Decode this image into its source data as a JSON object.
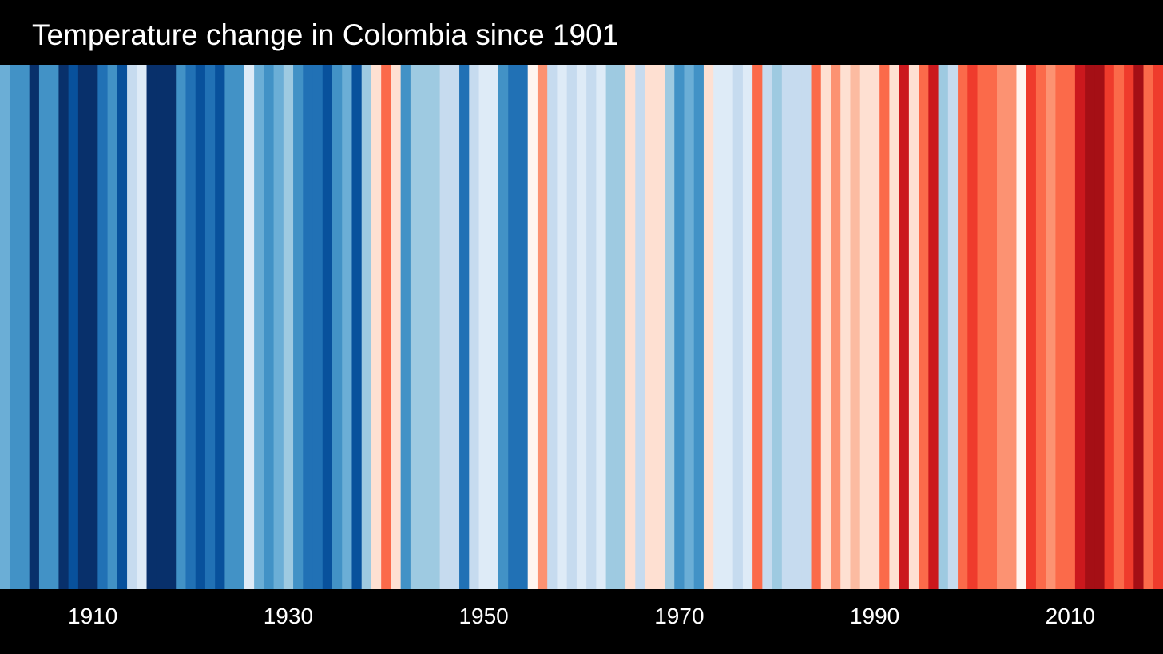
{
  "title": "Temperature change in Colombia since 1901",
  "colors": {
    "background": "#000000",
    "text": "#ffffff"
  },
  "chart_data": {
    "type": "heatmap",
    "title": "Temperature change in Colombia since 1901",
    "xlabel": "",
    "ylabel": "",
    "x_range": [
      1901,
      2019
    ],
    "x_ticks": [
      1910,
      1930,
      1950,
      1970,
      1990,
      2010
    ],
    "years": [
      1901,
      1902,
      1903,
      1904,
      1905,
      1906,
      1907,
      1908,
      1909,
      1910,
      1911,
      1912,
      1913,
      1914,
      1915,
      1916,
      1917,
      1918,
      1919,
      1920,
      1921,
      1922,
      1923,
      1924,
      1925,
      1926,
      1927,
      1928,
      1929,
      1930,
      1931,
      1932,
      1933,
      1934,
      1935,
      1936,
      1937,
      1938,
      1939,
      1940,
      1941,
      1942,
      1943,
      1944,
      1945,
      1946,
      1947,
      1948,
      1949,
      1950,
      1951,
      1952,
      1953,
      1954,
      1955,
      1956,
      1957,
      1958,
      1959,
      1960,
      1961,
      1962,
      1963,
      1964,
      1965,
      1966,
      1967,
      1968,
      1969,
      1970,
      1971,
      1972,
      1973,
      1974,
      1975,
      1976,
      1977,
      1978,
      1979,
      1980,
      1981,
      1982,
      1983,
      1984,
      1985,
      1986,
      1987,
      1988,
      1989,
      1990,
      1991,
      1992,
      1993,
      1994,
      1995,
      1996,
      1997,
      1998,
      1999,
      2000,
      2001,
      2002,
      2003,
      2004,
      2005,
      2006,
      2007,
      2008,
      2009,
      2010,
      2011,
      2012,
      2013,
      2014,
      2015,
      2016,
      2017,
      2018,
      2019
    ],
    "colors": [
      "#6baed6",
      "#4292c6",
      "#4292c6",
      "#08306b",
      "#4292c6",
      "#4292c6",
      "#08306b",
      "#08519c",
      "#08306b",
      "#08306b",
      "#2171b5",
      "#4292c6",
      "#08519c",
      "#c6dbef",
      "#deebf7",
      "#08306b",
      "#08306b",
      "#08306b",
      "#4292c6",
      "#2171b5",
      "#08519c",
      "#2171b5",
      "#08519c",
      "#4292c6",
      "#4292c6",
      "#deebf7",
      "#6baed6",
      "#4292c6",
      "#6baed6",
      "#9ecae1",
      "#4292c6",
      "#2171b5",
      "#2171b5",
      "#08519c",
      "#4292c6",
      "#6baed6",
      "#08519c",
      "#9ecae1",
      "#fee0d2",
      "#fb6a4a",
      "#fee0d2",
      "#4292c6",
      "#9ecae1",
      "#9ecae1",
      "#9ecae1",
      "#c6dbef",
      "#c6dbef",
      "#2171b5",
      "#c6dbef",
      "#deebf7",
      "#deebf7",
      "#4292c6",
      "#2171b5",
      "#2171b5",
      "#fff5f0",
      "#fc9272",
      "#c6dbef",
      "#deebf7",
      "#c6dbef",
      "#deebf7",
      "#c6dbef",
      "#deebf7",
      "#9ecae1",
      "#9ecae1",
      "#fee0d2",
      "#c6dbef",
      "#fee0d2",
      "#fee0d2",
      "#9ecae1",
      "#4292c6",
      "#6baed6",
      "#4292c6",
      "#fee0d2",
      "#deebf7",
      "#deebf7",
      "#c6dbef",
      "#deebf7",
      "#fb6a4a",
      "#c6dbef",
      "#9ecae1",
      "#c6dbef",
      "#c6dbef",
      "#c6dbef",
      "#fb6a4a",
      "#fee0d2",
      "#fc9272",
      "#fee0d2",
      "#fcbba1",
      "#fee0d2",
      "#fee0d2",
      "#fb6a4a",
      "#fee0d2",
      "#cb181d",
      "#fee0d2",
      "#fb6a4a",
      "#cb181d",
      "#9ecae1",
      "#c6dbef",
      "#fb6a4a",
      "#ef3b2c",
      "#fb6a4a",
      "#fb6a4a",
      "#fc9272",
      "#fc9272",
      "#fff5f0",
      "#ef3b2c",
      "#fb6a4a",
      "#fc9272",
      "#fb6a4a",
      "#fb6a4a",
      "#cb181d",
      "#a50f15",
      "#a50f15",
      "#ef3b2c",
      "#fb6a4a",
      "#ef3b2c",
      "#a50f15",
      "#fb6a4a",
      "#ef3b2c"
    ]
  }
}
